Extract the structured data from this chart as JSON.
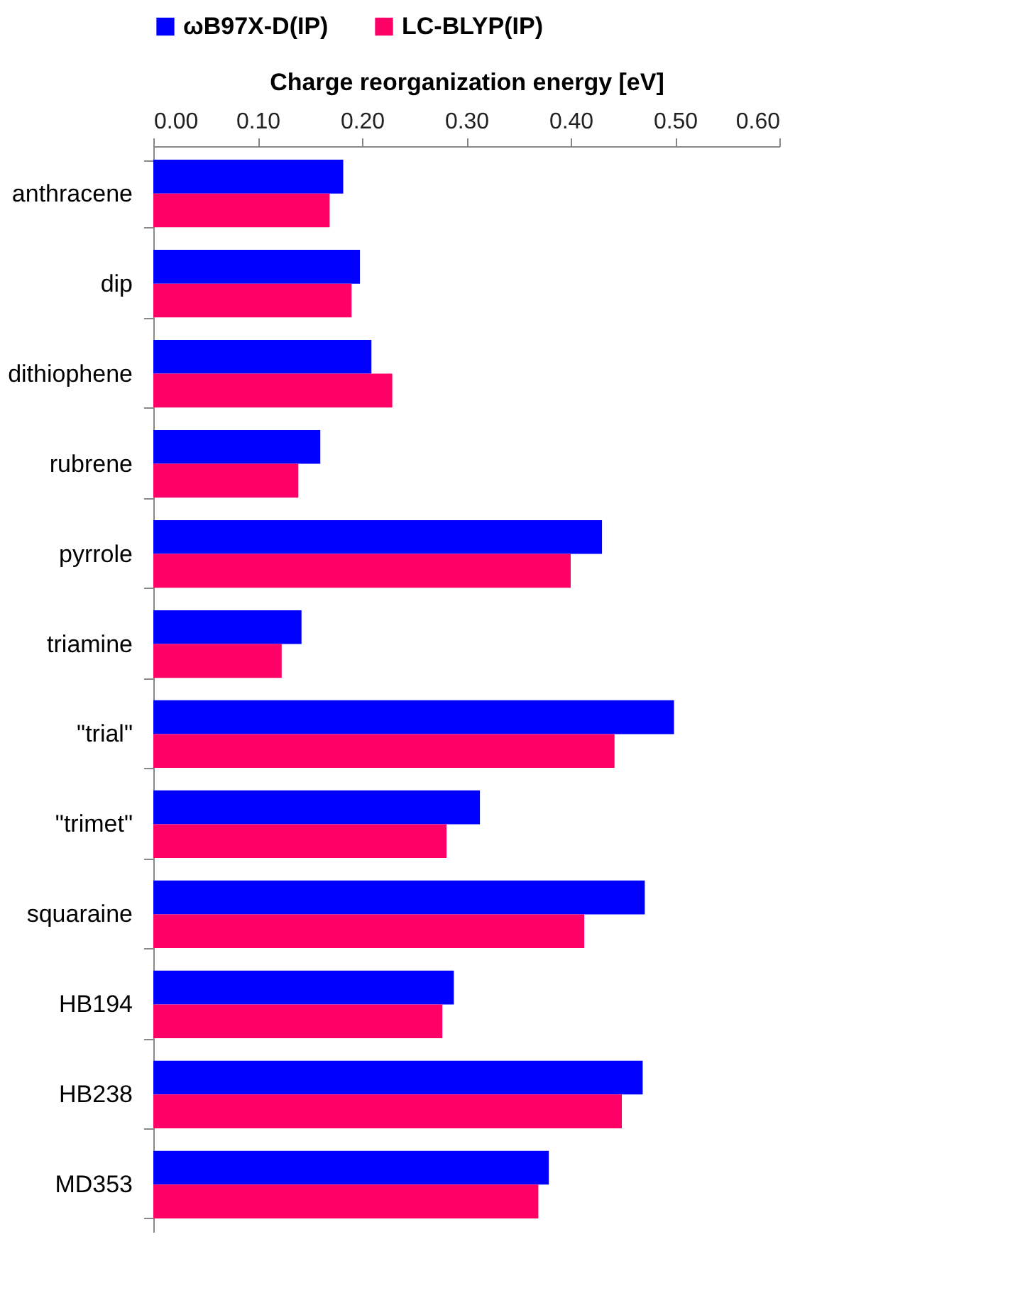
{
  "chart_data": {
    "type": "bar",
    "orientation": "horizontal",
    "xlabel": "Charge reorganization energy [eV]",
    "categories": [
      "anthracene",
      "dip",
      "dithiophene",
      "rubrene",
      "pyrrole",
      "triamine",
      "\"trial\"",
      "\"trimet\"",
      "squaraine",
      "HB194",
      "HB238",
      "MD353"
    ],
    "series": [
      {
        "name": "ωB97X-D(IP)",
        "color": "#0000ff",
        "values": [
          0.182,
          0.198,
          0.209,
          0.16,
          0.43,
          0.142,
          0.499,
          0.313,
          0.471,
          0.288,
          0.469,
          0.379
        ]
      },
      {
        "name": "LC-BLYP(IP)",
        "color": "#ff0066",
        "values": [
          0.169,
          0.19,
          0.229,
          0.139,
          0.4,
          0.123,
          0.442,
          0.281,
          0.413,
          0.277,
          0.449,
          0.369
        ]
      }
    ],
    "xlim": [
      0,
      0.6
    ],
    "xticks": [
      {
        "value": 0,
        "label": "0.00"
      },
      {
        "value": 0.1,
        "label": "0.10"
      },
      {
        "value": 0.2,
        "label": "0.20"
      },
      {
        "value": 0.3,
        "label": "0.30"
      },
      {
        "value": 0.4,
        "label": "0.40"
      },
      {
        "value": 0.5,
        "label": "0.50"
      },
      {
        "value": 0.6,
        "label": "0.60"
      }
    ],
    "grid": false,
    "legend": "top"
  }
}
